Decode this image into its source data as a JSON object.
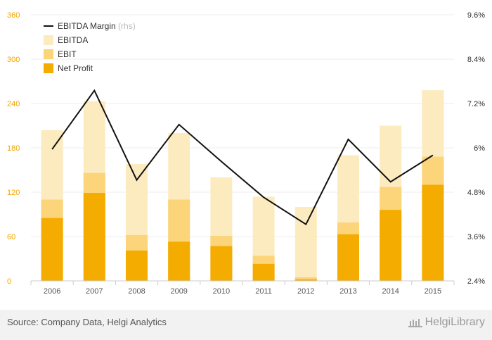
{
  "chart_data": {
    "type": "bar",
    "categories": [
      "2006",
      "2007",
      "2008",
      "2009",
      "2010",
      "2011",
      "2012",
      "2013",
      "2014",
      "2015"
    ],
    "series": [
      {
        "name": "EBITDA",
        "type": "bar",
        "axis": "left",
        "color": "#fdebc0",
        "values": [
          204,
          243,
          158,
          200,
          140,
          114,
          100,
          170,
          210,
          258
        ]
      },
      {
        "name": "EBIT",
        "type": "bar",
        "axis": "left",
        "color": "#fcd47a",
        "values": [
          110,
          146,
          62,
          110,
          61,
          34,
          5,
          79,
          127,
          168
        ]
      },
      {
        "name": "Net Profit",
        "type": "bar",
        "axis": "left",
        "color": "#f5ac00",
        "values": [
          85,
          119,
          41,
          53,
          47,
          23,
          2,
          63,
          96,
          130
        ]
      },
      {
        "name": "EBITDA Margin",
        "type": "line",
        "axis": "right",
        "color": "#111111",
        "values": [
          5.96,
          7.55,
          5.13,
          6.63,
          5.63,
          4.66,
          3.93,
          6.23,
          5.08,
          5.8
        ]
      }
    ],
    "legend": [
      {
        "label": "EBITDA Margin",
        "suffix": "(rhs)",
        "kind": "line",
        "color": "#111111"
      },
      {
        "label": "EBITDA",
        "kind": "box",
        "color": "#fdebc0"
      },
      {
        "label": "EBIT",
        "kind": "box",
        "color": "#fcd47a"
      },
      {
        "label": "Net Profit",
        "kind": "box",
        "color": "#f5ac00"
      }
    ],
    "legend_position": "top-left",
    "y_left": {
      "ylim": [
        0,
        360
      ],
      "ticks": [
        "0",
        "60",
        "120",
        "180",
        "240",
        "300",
        "360"
      ],
      "color": "#f0a500"
    },
    "y_right": {
      "ylim": [
        2.4,
        9.6
      ],
      "ticks": [
        "2.4%",
        "3.6%",
        "4.8%",
        "6%",
        "7.2%",
        "8.4%",
        "9.6%"
      ]
    },
    "grid": true,
    "title": "",
    "xlabel": "",
    "ylabel": ""
  },
  "footer": {
    "source": "Source: Company Data, Helgi Analytics",
    "brand": "HelgiLibrary"
  }
}
